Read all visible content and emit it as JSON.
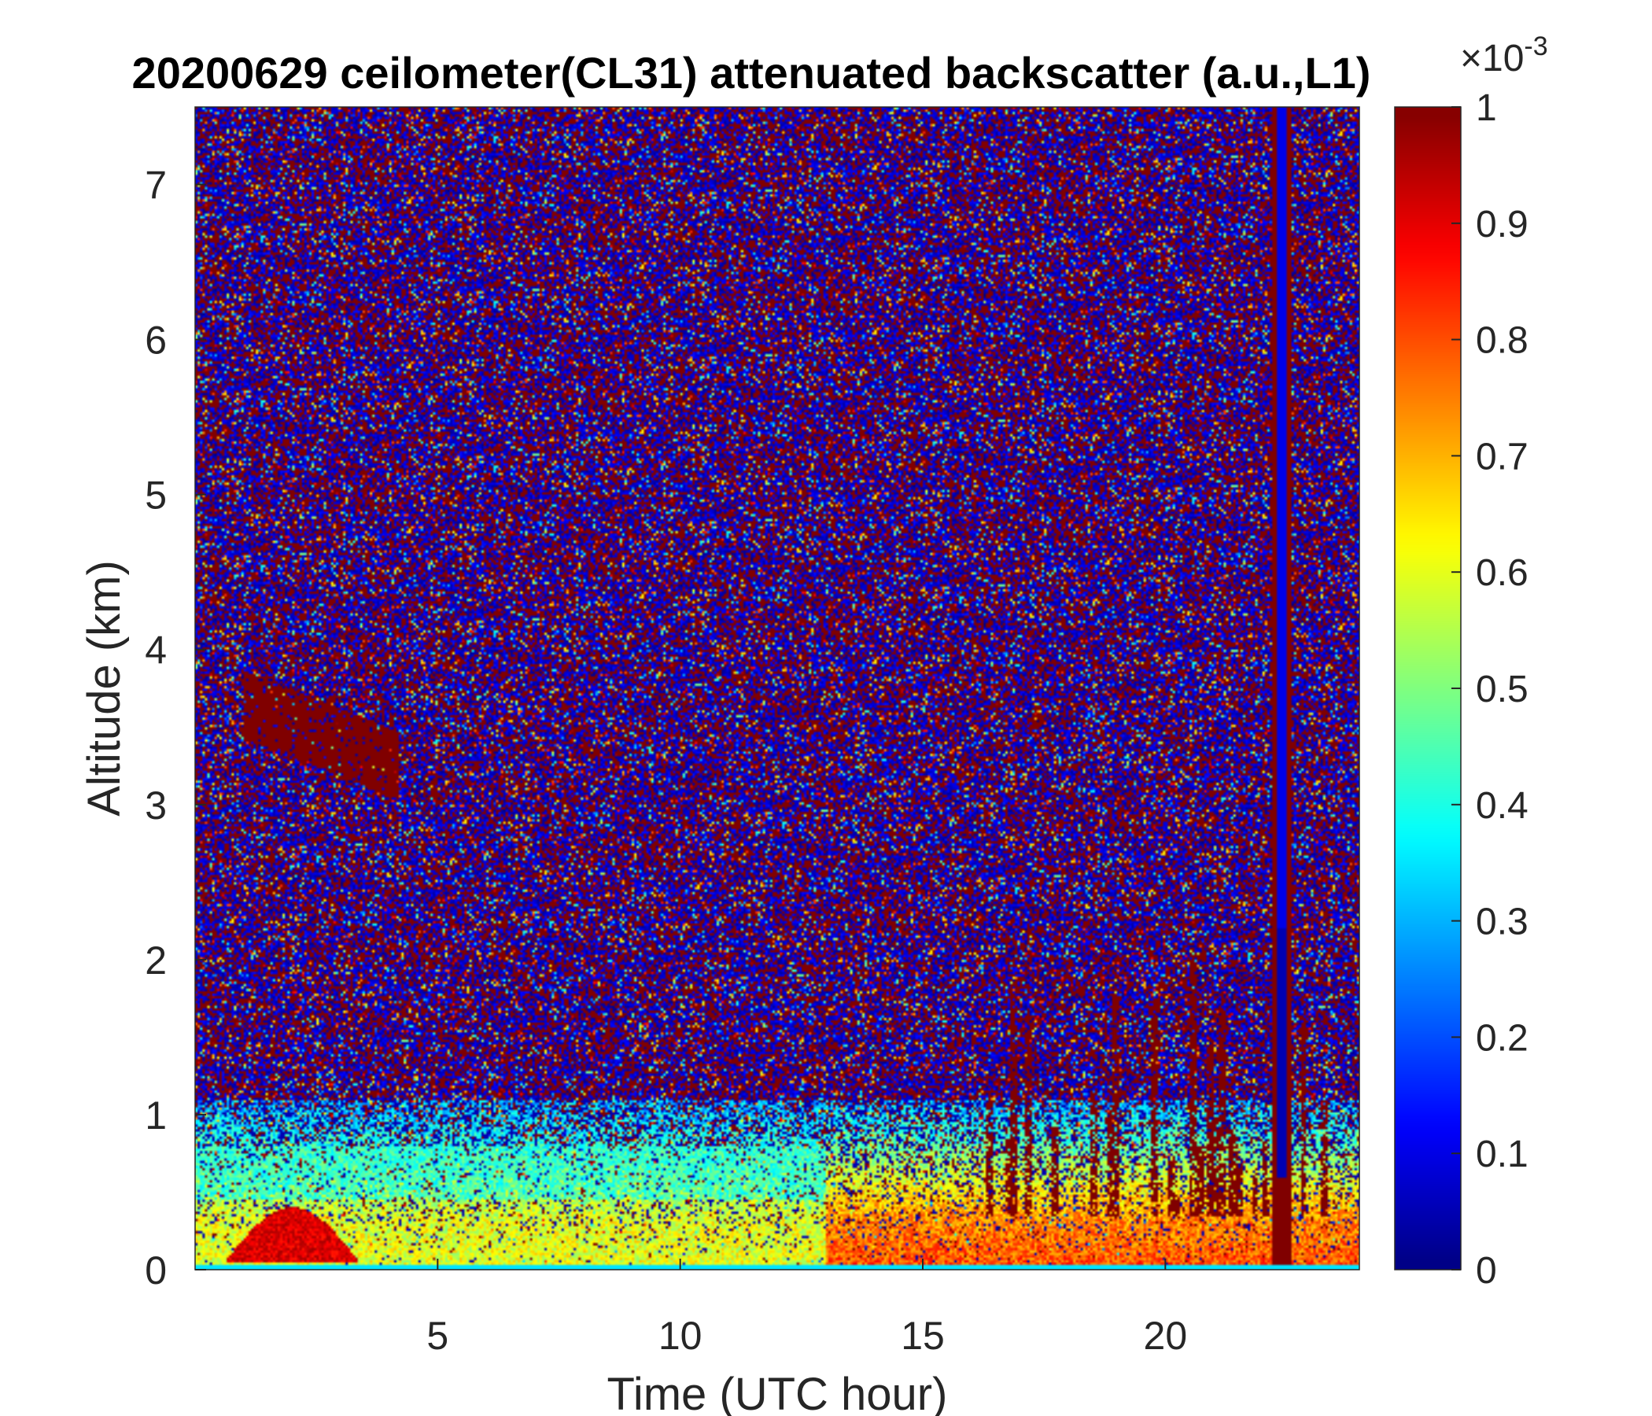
{
  "chart_data": {
    "type": "heatmap",
    "title": "20200629 ceilometer(CL31) attenuated backscatter (a.u.,L1)",
    "xlabel": "Time (UTC hour)",
    "ylabel": "Altitude (km)",
    "xlim": [
      0,
      24
    ],
    "ylim": [
      0,
      7.5
    ],
    "x_ticks": [
      5,
      10,
      15,
      20
    ],
    "y_ticks": [
      0,
      1,
      2,
      3,
      4,
      5,
      6,
      7
    ],
    "colorbar": {
      "colormap": "jet",
      "range": [
        0,
        1
      ],
      "ticks": [
        0,
        0.1,
        0.2,
        0.3,
        0.4,
        0.5,
        0.6,
        0.7,
        0.8,
        0.9,
        1
      ],
      "multiplier_base": "×10",
      "multiplier_exp": "-3"
    },
    "features": [
      {
        "name": "noise field",
        "x": [
          0,
          24
        ],
        "y": [
          1.0,
          7.5
        ],
        "value_range": [
          0,
          1
        ]
      },
      {
        "name": "boundary layer aerosol",
        "x": [
          0,
          24
        ],
        "y": [
          0,
          0.8
        ],
        "value_range": [
          0.3,
          0.8
        ]
      },
      {
        "name": "elevated aerosol layer",
        "x": [
          1,
          4.2
        ],
        "y": [
          3.0,
          4.0
        ],
        "value": 1.0
      },
      {
        "name": "near-surface high backscatter",
        "x": [
          0.5,
          3.5
        ],
        "y": [
          0,
          0.4
        ],
        "value": 0.9
      },
      {
        "name": "virga streaks",
        "x": [
          15.5,
          23.5
        ],
        "y": [
          0.3,
          2.0
        ],
        "value": 1.0
      },
      {
        "name": "precipitation column",
        "x": [
          22.2,
          22.6
        ],
        "y": [
          0,
          7.5
        ],
        "value": 1.0
      }
    ],
    "colors": {
      "axis": "#262626",
      "background": "#ffffff"
    }
  }
}
